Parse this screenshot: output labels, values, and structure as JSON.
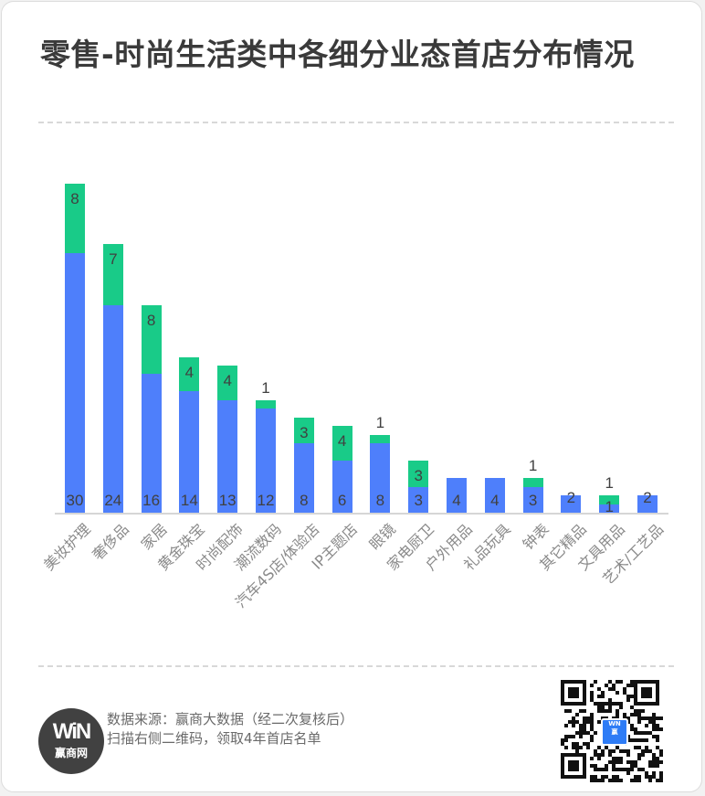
{
  "title": "零售-时尚生活类中各细分业态首店分布情况",
  "colors": {
    "series_blue": "#4e7ffb",
    "series_green": "#19cb88",
    "title_text": "#3a3a3a",
    "axis_label": "#8a8a8a",
    "value_label": "#404040"
  },
  "chart_data": {
    "type": "bar",
    "stacked": true,
    "title": "零售-时尚生活类中各细分业态首店分布情况",
    "xlabel": "",
    "ylabel": "",
    "categories": [
      "美妆护理",
      "奢侈品",
      "家居",
      "黄金珠宝",
      "时尚配饰",
      "潮流数码",
      "汽车4S店/体验店",
      "IP主题店",
      "眼镜",
      "家电厨卫",
      "户外用品",
      "礼品玩具",
      "钟表",
      "其它精品",
      "文具用品",
      "艺术/工艺品"
    ],
    "series": [
      {
        "name": "blue",
        "color": "#4e7ffb",
        "values": [
          30,
          24,
          16,
          14,
          13,
          12,
          8,
          6,
          8,
          3,
          4,
          4,
          3,
          2,
          1,
          2
        ]
      },
      {
        "name": "green",
        "color": "#19cb88",
        "values": [
          8,
          7,
          8,
          4,
          4,
          1,
          3,
          4,
          1,
          3,
          0,
          0,
          1,
          0,
          1,
          0
        ]
      }
    ],
    "ylim": [
      0,
      38
    ],
    "grid": false,
    "legend": "none",
    "x_tick_rotation": -45
  },
  "footer": {
    "logo_mark": "WiN",
    "logo_name": "赢商网",
    "source_line": "数据来源：赢商大数据（经二次复核后）",
    "cta_line": "扫描右侧二维码，领取4年首店名单",
    "qr_icon": "qr-code-icon"
  }
}
